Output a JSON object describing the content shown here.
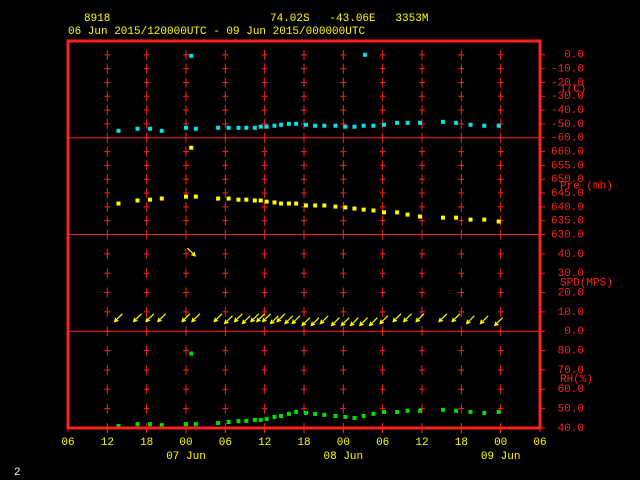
{
  "header": {
    "station": "8918",
    "location": "74.02S   -43.06E   3353M",
    "period": "06 Jun 2015/120000UTC - 09 Jun 2015/000000UTC"
  },
  "page_number": "2",
  "chart_data": [
    {
      "type": "scatter",
      "ylabel": "T(C)",
      "color": "#00e5e5",
      "x": [
        13.7,
        16.6,
        18.5,
        20.3,
        24,
        24.8,
        25.5,
        28.9,
        30.5,
        32,
        33.2,
        34.5,
        35.4,
        36.3,
        37.5,
        38.5,
        39.7,
        40.8,
        42.3,
        43.7,
        45.1,
        46.8,
        48.3,
        49.7,
        51.1,
        51.3,
        52.6,
        54.2,
        56.2,
        57.8,
        59.7,
        63.2,
        65.2,
        67.4,
        69.5,
        71.7
      ],
      "values": [
        -55,
        -53.5,
        -53.5,
        -55,
        -52.8,
        -0.7,
        -53.5,
        -52.8,
        -52.8,
        -52.8,
        -52.8,
        -52.8,
        -52,
        -52,
        -51.3,
        -50.6,
        -49.9,
        -49.9,
        -50.6,
        -51.3,
        -51.3,
        -51.3,
        -52,
        -52,
        -51.3,
        0,
        -51.3,
        -50.6,
        -49.2,
        -49.2,
        -49.2,
        -48.5,
        -49.2,
        -50.6,
        -51.3,
        -51.3
      ],
      "ylim": [
        -60,
        10
      ],
      "yticks": [
        {
          "value": 0,
          "label": "0.0"
        },
        {
          "value": -10,
          "label": "-10.0"
        },
        {
          "value": -20,
          "label": "-20.0"
        },
        {
          "value": -30,
          "label": "-30.0"
        },
        {
          "value": -40,
          "label": "-40.0"
        },
        {
          "value": -50,
          "label": "-50.0"
        },
        {
          "value": -60,
          "label": "-60.0"
        }
      ]
    },
    {
      "type": "scatter",
      "ylabel": "Pre (mb)",
      "color": "#ffff00",
      "x": [
        13.7,
        16.6,
        18.5,
        20.3,
        24,
        24.8,
        25.5,
        28.9,
        30.5,
        32,
        33.2,
        34.5,
        35.4,
        36.3,
        37.5,
        38.5,
        39.7,
        40.8,
        42.3,
        43.7,
        45.1,
        46.8,
        48.3,
        49.7,
        51.1,
        51.3,
        52.6,
        54.2,
        56.2,
        57.8,
        59.7,
        63.2,
        65.2,
        67.4,
        69.5,
        71.7
      ],
      "values": [
        641.2,
        642.3,
        642.6,
        643.0,
        643.7,
        661.4,
        643.7,
        643,
        643,
        642.6,
        642.6,
        642.3,
        642.3,
        641.9,
        641.6,
        641.2,
        641.2,
        641.2,
        640.5,
        640.5,
        640.5,
        640.1,
        639.8,
        639.4,
        639,
        null,
        638.7,
        638,
        638,
        637.2,
        636.5,
        636.1,
        636.1,
        635.4,
        635.4,
        634.7
      ],
      "ylim": [
        630,
        665
      ],
      "yticks": [
        {
          "value": 660,
          "label": "660.0"
        },
        {
          "value": 655,
          "label": "655.0"
        },
        {
          "value": 650,
          "label": "650.0"
        },
        {
          "value": 645,
          "label": "645.0"
        },
        {
          "value": 640,
          "label": "640.0"
        },
        {
          "value": 635,
          "label": "635.0"
        },
        {
          "value": 630,
          "label": "630.0"
        }
      ]
    },
    {
      "type": "quiver",
      "ylabel": "SPD(MPS)",
      "color": "#ffff00",
      "x": [
        13.7,
        16.6,
        18.5,
        20.3,
        24,
        24.8,
        25.5,
        28.9,
        30.5,
        32,
        33.2,
        34.5,
        35.4,
        36.3,
        37.5,
        38.5,
        39.7,
        40.8,
        42.3,
        43.7,
        45.1,
        46.8,
        48.3,
        49.7,
        51.1,
        51.3,
        52.6,
        54.2,
        56.2,
        57.8,
        59.7,
        63.2,
        65.2,
        67.4,
        69.5,
        71.7
      ],
      "values": [
        7,
        7,
        7,
        7,
        7,
        41,
        7,
        7,
        6,
        7,
        6,
        7,
        7,
        7,
        6,
        7,
        6,
        6,
        5,
        5,
        6,
        5,
        5,
        5,
        5,
        null,
        5,
        6,
        7,
        7,
        7,
        7,
        7,
        6,
        6,
        5
      ],
      "directions": [
        45,
        45,
        45,
        45,
        45,
        315,
        45,
        45,
        45,
        45,
        45,
        45,
        45,
        45,
        45,
        45,
        45,
        45,
        45,
        45,
        45,
        45,
        45,
        45,
        45,
        null,
        45,
        45,
        45,
        45,
        45,
        45,
        45,
        45,
        45,
        45
      ],
      "ylim": [
        0,
        50
      ],
      "yticks": [
        {
          "value": 40,
          "label": "40.0"
        },
        {
          "value": 30,
          "label": "30.0"
        },
        {
          "value": 20,
          "label": "20.0"
        },
        {
          "value": 10,
          "label": "10.0"
        },
        {
          "value": 0,
          "label": "0.0"
        }
      ]
    },
    {
      "type": "scatter",
      "ylabel": "RH(%)",
      "color": "#00e000",
      "x": [
        13.7,
        16.6,
        18.5,
        20.3,
        24,
        24.8,
        25.5,
        28.9,
        30.5,
        32,
        33.2,
        34.5,
        35.4,
        36.3,
        37.5,
        38.5,
        39.7,
        40.8,
        42.3,
        43.7,
        45.1,
        46.8,
        48.3,
        49.7,
        51.1,
        51.3,
        52.6,
        54.2,
        56.2,
        57.8,
        59.7,
        63.2,
        65.2,
        67.4,
        69.5,
        71.7
      ],
      "values": [
        41,
        42,
        42,
        41.5,
        42,
        78.5,
        42,
        42.6,
        43.1,
        43.6,
        43.6,
        44.2,
        44.2,
        44.7,
        45.7,
        46.2,
        47.3,
        48.3,
        47.8,
        47.3,
        46.8,
        46.2,
        45.7,
        45.2,
        46.2,
        null,
        47.3,
        48.3,
        48.3,
        48.9,
        48.9,
        49.4,
        48.9,
        48.3,
        47.8,
        48.3
      ],
      "ylim": [
        40,
        90
      ],
      "yticks": [
        {
          "value": 80,
          "label": "80.0"
        },
        {
          "value": 70,
          "label": "70.0"
        },
        {
          "value": 60,
          "label": "60.0"
        },
        {
          "value": 50,
          "label": "50.0"
        },
        {
          "value": 40,
          "label": "40.0"
        }
      ],
      "xlim": [
        6,
        78
      ],
      "xticks": [
        {
          "value": 6,
          "label": "06"
        },
        {
          "value": 12,
          "label": "12"
        },
        {
          "value": 18,
          "label": "18"
        },
        {
          "value": 24,
          "label": "00"
        },
        {
          "value": 30,
          "label": "06"
        },
        {
          "value": 36,
          "label": "12"
        },
        {
          "value": 42,
          "label": "18"
        },
        {
          "value": 48,
          "label": "00"
        },
        {
          "value": 54,
          "label": "06"
        },
        {
          "value": 60,
          "label": "12"
        },
        {
          "value": 66,
          "label": "18"
        },
        {
          "value": 72,
          "label": "00"
        },
        {
          "value": 78,
          "label": "06"
        }
      ],
      "date_labels": [
        {
          "value": 24,
          "label": "07 Jun"
        },
        {
          "value": 48,
          "label": "08 Jun"
        },
        {
          "value": 72,
          "label": "09 Jun"
        }
      ]
    }
  ]
}
